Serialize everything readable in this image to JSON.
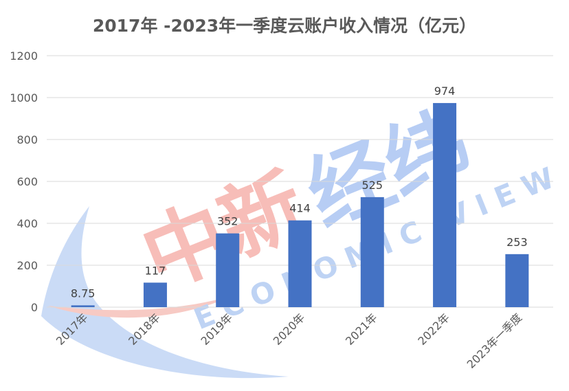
{
  "chart_data": {
    "type": "bar",
    "title": "2017年 -2023年一季度云账户收入情况（亿元）",
    "categories": [
      "2017年",
      "2018年",
      "2019年",
      "2020年",
      "2021年",
      "2022年",
      "2023年一季度"
    ],
    "values": [
      8.75,
      117,
      352,
      414,
      525,
      974,
      253
    ],
    "data_labels": [
      "8.75",
      "117",
      "352",
      "414",
      "525",
      "974",
      "253"
    ],
    "yticks": [
      "0",
      "200",
      "400",
      "600",
      "800",
      "1000",
      "1200"
    ],
    "ylim": [
      0,
      1200
    ],
    "grid": true,
    "legend": "none",
    "bar_color": "#4472c4",
    "grid_color": "#d9d9d9"
  },
  "watermark": {
    "text_cn": "中新经纬",
    "text_en": "ECONOMIC VIEW",
    "color_red": "#f4a7a0",
    "color_blue": "#9fbdf0"
  }
}
